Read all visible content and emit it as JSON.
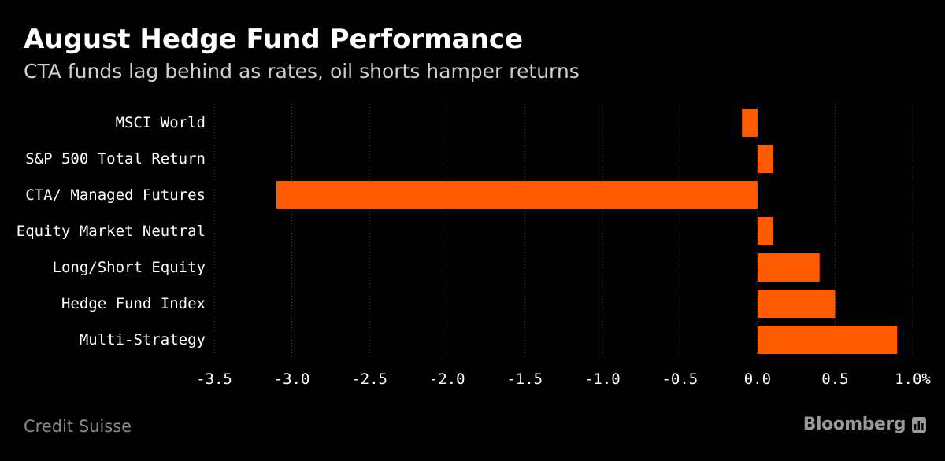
{
  "header": {
    "title": "August Hedge Fund Performance",
    "subtitle": "CTA funds lag behind as rates, oil shorts hamper returns"
  },
  "footer": {
    "source": "Credit Suisse",
    "brand": "Bloomberg",
    "brand_icon": "bloomberg-chart-icon"
  },
  "colors": {
    "background": "#000000",
    "bar": "#ff5a00",
    "text": "#ffffff",
    "grid": "#555555"
  },
  "chart_data": {
    "type": "bar",
    "orientation": "horizontal",
    "title": "August Hedge Fund Performance",
    "subtitle": "CTA funds lag behind as rates, oil shorts hamper returns",
    "categories": [
      "MSCI World",
      "S&P 500 Total Return",
      "CTA/ Managed Futures",
      "Equity Market Neutral",
      "Long/Short Equity",
      "Hedge Fund Index",
      "Multi-Strategy"
    ],
    "values": [
      -0.1,
      0.1,
      -3.1,
      0.1,
      0.4,
      0.5,
      0.9
    ],
    "xlim": [
      -3.5,
      1.0
    ],
    "xticks": [
      -3.5,
      -3.0,
      -2.5,
      -2.0,
      -1.5,
      -1.0,
      -0.5,
      0.0,
      0.5,
      1.0
    ],
    "xtick_labels": [
      "-3.5",
      "-3.0",
      "-2.5",
      "-2.0",
      "-1.5",
      "-1.0",
      "-0.5",
      "0.0",
      "0.5",
      "1.0%"
    ],
    "grid": "vertical dotted",
    "legend": "none"
  }
}
